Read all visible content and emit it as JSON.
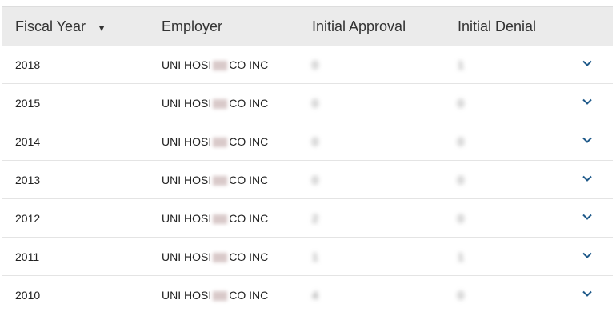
{
  "headers": {
    "fiscal_year": "Fiscal Year",
    "employer": "Employer",
    "initial_approval": "Initial Approval",
    "initial_denial": "Initial Denial"
  },
  "sort_icon": "caret-down-icon",
  "accent": "#1f5a8a",
  "rows": [
    {
      "year": "2018",
      "employer_start": "UNI HOSI",
      "employer_end": "CO INC",
      "approval": "0",
      "denial": "1"
    },
    {
      "year": "2015",
      "employer_start": "UNI HOSI",
      "employer_end": "CO INC",
      "approval": "0",
      "denial": "0"
    },
    {
      "year": "2014",
      "employer_start": "UNI HOSI",
      "employer_end": "CO INC",
      "approval": "0",
      "denial": "0"
    },
    {
      "year": "2013",
      "employer_start": "UNI HOSI",
      "employer_end": "CO INC",
      "approval": "0",
      "denial": "0"
    },
    {
      "year": "2012",
      "employer_start": "UNI HOSI",
      "employer_end": "CO INC",
      "approval": "2",
      "denial": "0"
    },
    {
      "year": "2011",
      "employer_start": "UNI HOSI",
      "employer_end": "CO INC",
      "approval": "1",
      "denial": "1"
    },
    {
      "year": "2010",
      "employer_start": "UNI HOSI",
      "employer_end": "CO INC",
      "approval": "4",
      "denial": "0"
    }
  ]
}
